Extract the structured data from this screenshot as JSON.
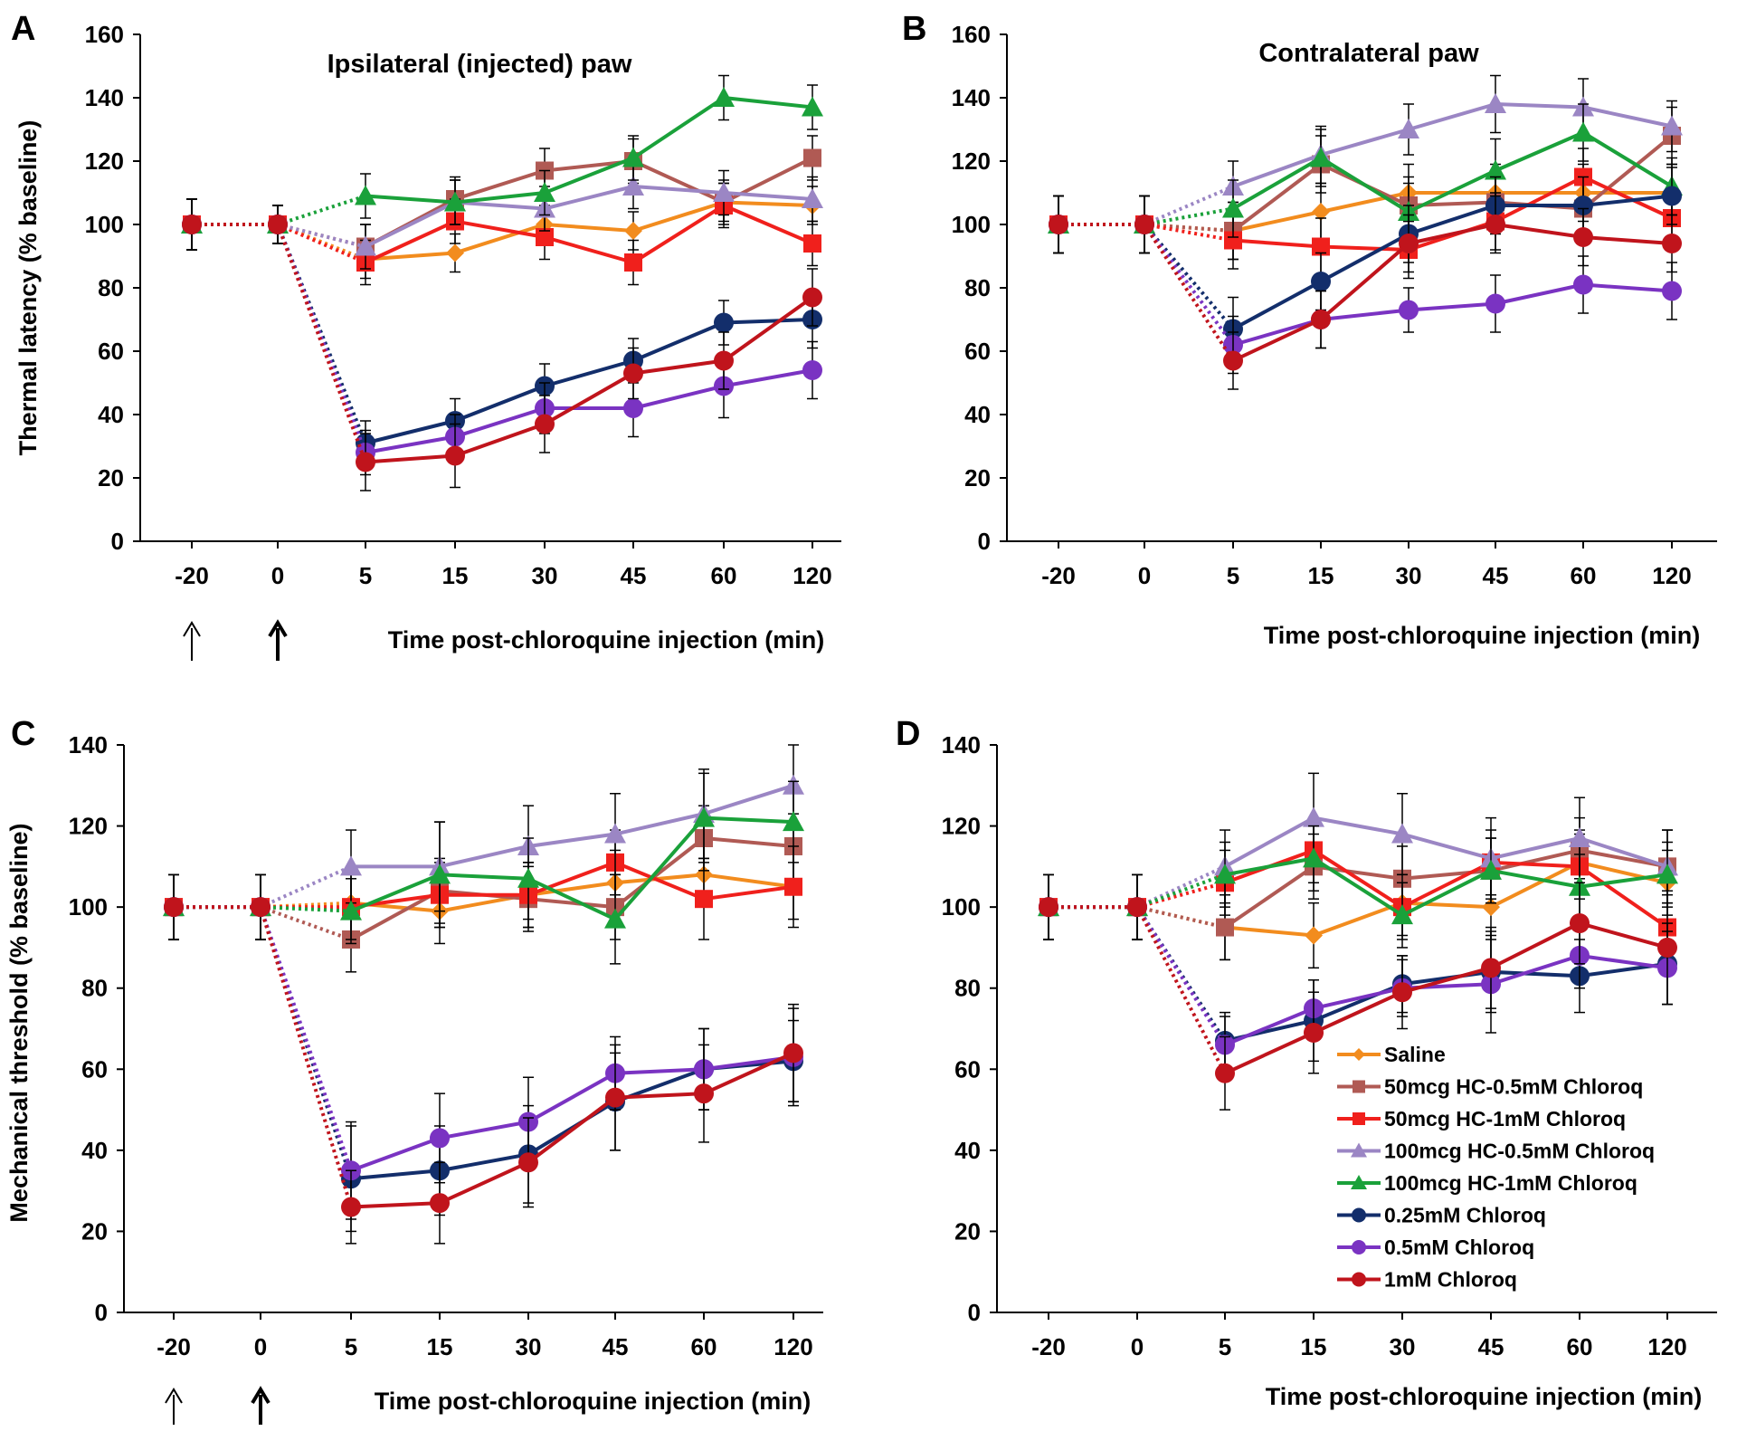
{
  "colors": {
    "Saline": "#f28c1e",
    "50mcg HC-0.5mM Chloroq": "#b05a54",
    "50mcg HC-1mM Chloroq": "#f0201c",
    "100mcg HC-0.5mM Chloroq": "#9b86c4",
    "100mcg HC-1mM Chloroq": "#1aa13a",
    "0.25mM Chloroq": "#132e6b",
    "0.5mM Chloroq": "#7a33c2",
    "1mM Chloroq": "#c0141c"
  },
  "markers": {
    "Saline": "diamond",
    "50mcg HC-0.5mM Chloroq": "square",
    "50mcg HC-1mM Chloroq": "square",
    "100mcg HC-0.5mM Chloroq": "triangle",
    "100mcg HC-1mM Chloroq": "triangle",
    "0.25mM Chloroq": "circle",
    "0.5mM Chloroq": "circle",
    "1mM Chloroq": "circle"
  },
  "legend": {
    "placement": "bottom-right of panel D",
    "entries": [
      "Saline",
      "50mcg HC-0.5mM Chloroq",
      "50mcg HC-1mM Chloroq",
      "100mcg HC-0.5mM Chloroq",
      "100mcg HC-1mM Chloroq",
      "0.25mM Chloroq",
      "0.5mM Chloroq",
      "1mM Chloroq"
    ]
  },
  "chart_data": [
    {
      "panel": "A",
      "type": "line",
      "title": "Ipsilateral (injected) paw",
      "xlabel": "Time post-chloroquine injection (min)",
      "ylabel": "Thermal latency (% baseline)",
      "categories": [
        "-20",
        "0",
        "5",
        "15",
        "30",
        "45",
        "60",
        "120"
      ],
      "ylim": [
        0,
        160
      ],
      "yticks": [
        0,
        20,
        40,
        60,
        80,
        100,
        120,
        140,
        160
      ],
      "arrows": true,
      "series": [
        {
          "name": "Saline",
          "values": [
            100,
            100,
            89,
            91,
            100,
            98,
            107,
            106
          ],
          "errors": [
            8,
            6,
            6,
            6,
            6,
            6,
            6,
            6
          ]
        },
        {
          "name": "50mcg HC-0.5mM Chloroq",
          "values": [
            100,
            100,
            93,
            108,
            117,
            120,
            107,
            121
          ],
          "errors": [
            8,
            6,
            7,
            7,
            7,
            7,
            7,
            7
          ]
        },
        {
          "name": "50mcg HC-1mM Chloroq",
          "values": [
            100,
            100,
            88,
            101,
            96,
            88,
            106,
            94
          ],
          "errors": [
            8,
            6,
            7,
            7,
            7,
            7,
            7,
            7
          ]
        },
        {
          "name": "100mcg HC-0.5mM Chloroq",
          "values": [
            100,
            100,
            93,
            107,
            105,
            112,
            110,
            108
          ],
          "errors": [
            8,
            6,
            7,
            7,
            7,
            7,
            7,
            7
          ]
        },
        {
          "name": "100mcg HC-1mM Chloroq",
          "values": [
            100,
            100,
            109,
            107,
            110,
            121,
            140,
            137
          ],
          "errors": [
            8,
            6,
            7,
            7,
            7,
            7,
            7,
            7
          ]
        },
        {
          "name": "0.25mM Chloroq",
          "values": [
            100,
            100,
            31,
            38,
            49,
            57,
            69,
            70
          ],
          "errors": [
            8,
            6,
            7,
            7,
            7,
            7,
            7,
            9
          ]
        },
        {
          "name": "0.5mM Chloroq",
          "values": [
            100,
            100,
            28,
            33,
            42,
            42,
            49,
            54
          ],
          "errors": [
            8,
            6,
            7,
            7,
            8,
            9,
            10,
            9
          ]
        },
        {
          "name": "1mM Chloroq",
          "values": [
            100,
            100,
            25,
            27,
            37,
            53,
            57,
            77
          ],
          "errors": [
            8,
            6,
            9,
            10,
            9,
            8,
            9,
            9
          ]
        }
      ]
    },
    {
      "panel": "B",
      "type": "line",
      "title": "Contralateral paw",
      "xlabel": "Time post-chloroquine injection (min)",
      "ylabel": "",
      "categories": [
        "-20",
        "0",
        "5",
        "15",
        "30",
        "45",
        "60",
        "120"
      ],
      "ylim": [
        0,
        160
      ],
      "yticks": [
        0,
        20,
        40,
        60,
        80,
        100,
        120,
        140,
        160
      ],
      "arrows": false,
      "series": [
        {
          "name": "Saline",
          "values": [
            100,
            100,
            98,
            104,
            110,
            110,
            110,
            110
          ],
          "errors": [
            9,
            9,
            9,
            9,
            9,
            9,
            9,
            9
          ]
        },
        {
          "name": "50mcg HC-0.5mM Chloroq",
          "values": [
            100,
            100,
            98,
            119,
            106,
            107,
            105,
            128
          ],
          "errors": [
            9,
            9,
            9,
            9,
            9,
            9,
            9,
            9
          ]
        },
        {
          "name": "50mcg HC-1mM Chloroq",
          "values": [
            100,
            100,
            95,
            93,
            92,
            101,
            115,
            102
          ],
          "errors": [
            9,
            9,
            9,
            9,
            9,
            9,
            9,
            9
          ]
        },
        {
          "name": "100mcg HC-0.5mM Chloroq",
          "values": [
            100,
            100,
            112,
            122,
            130,
            138,
            137,
            131
          ],
          "errors": [
            9,
            9,
            8,
            9,
            8,
            9,
            9,
            8
          ]
        },
        {
          "name": "100mcg HC-1mM Chloroq",
          "values": [
            100,
            100,
            105,
            121,
            104,
            117,
            129,
            112
          ],
          "errors": [
            9,
            9,
            9,
            9,
            9,
            10,
            9,
            9
          ]
        },
        {
          "name": "0.25mM Chloroq",
          "values": [
            100,
            100,
            67,
            82,
            97,
            106,
            106,
            109
          ],
          "errors": [
            9,
            9,
            10,
            9,
            9,
            9,
            9,
            9
          ]
        },
        {
          "name": "0.5mM Chloroq",
          "values": [
            100,
            100,
            62,
            70,
            73,
            75,
            81,
            79
          ],
          "errors": [
            9,
            9,
            9,
            9,
            7,
            9,
            9,
            9
          ]
        },
        {
          "name": "1mM Chloroq",
          "values": [
            100,
            100,
            57,
            70,
            94,
            100,
            96,
            94
          ],
          "errors": [
            9,
            9,
            9,
            9,
            9,
            9,
            9,
            9
          ]
        }
      ]
    },
    {
      "panel": "C",
      "type": "line",
      "title": "",
      "xlabel": "Time post-chloroquine injection (min)",
      "ylabel": "Mechanical threshold (% baseline)",
      "categories": [
        "-20",
        "0",
        "5",
        "15",
        "30",
        "45",
        "60",
        "120"
      ],
      "ylim": [
        0,
        140
      ],
      "yticks": [
        0,
        20,
        40,
        60,
        80,
        100,
        120,
        140
      ],
      "arrows": true,
      "series": [
        {
          "name": "Saline",
          "values": [
            100,
            100,
            101,
            99,
            103,
            106,
            108,
            105
          ],
          "errors": [
            8,
            8,
            8,
            8,
            8,
            8,
            8,
            8
          ]
        },
        {
          "name": "50mcg HC-0.5mM Chloroq",
          "values": [
            100,
            100,
            92,
            104,
            102,
            100,
            117,
            115
          ],
          "errors": [
            8,
            8,
            8,
            8,
            8,
            8,
            8,
            8
          ]
        },
        {
          "name": "50mcg HC-1mM Chloroq",
          "values": [
            100,
            100,
            100,
            103,
            103,
            111,
            102,
            105
          ],
          "errors": [
            8,
            8,
            8,
            8,
            8,
            8,
            10,
            10
          ]
        },
        {
          "name": "100mcg HC-0.5mM Chloroq",
          "values": [
            100,
            100,
            110,
            110,
            115,
            118,
            123,
            130
          ],
          "errors": [
            8,
            8,
            9,
            11,
            10,
            10,
            11,
            10
          ]
        },
        {
          "name": "100mcg HC-1mM Chloroq",
          "values": [
            100,
            100,
            99,
            108,
            107,
            97,
            122,
            121
          ],
          "errors": [
            8,
            8,
            8,
            13,
            10,
            11,
            11,
            10
          ]
        },
        {
          "name": "0.25mM Chloroq",
          "values": [
            100,
            100,
            33,
            35,
            39,
            52,
            60,
            62
          ],
          "errors": [
            8,
            8,
            13,
            11,
            12,
            12,
            10,
            10
          ]
        },
        {
          "name": "0.5mM Chloroq",
          "values": [
            100,
            100,
            35,
            43,
            47,
            59,
            60,
            63
          ],
          "errors": [
            8,
            8,
            12,
            11,
            11,
            9,
            10,
            12
          ]
        },
        {
          "name": "1mM Chloroq",
          "values": [
            100,
            100,
            26,
            27,
            37,
            53,
            54,
            64
          ],
          "errors": [
            8,
            8,
            9,
            10,
            11,
            13,
            12,
            12
          ]
        }
      ]
    },
    {
      "panel": "D",
      "type": "line",
      "title": "",
      "xlabel": "Time post-chloroquine injection (min)",
      "ylabel": "",
      "categories": [
        "-20",
        "0",
        "5",
        "15",
        "30",
        "45",
        "60",
        "120"
      ],
      "ylim": [
        0,
        140
      ],
      "yticks": [
        0,
        20,
        40,
        60,
        80,
        100,
        120,
        140
      ],
      "arrows": false,
      "series": [
        {
          "name": "Saline",
          "values": [
            100,
            100,
            95,
            93,
            101,
            100,
            111,
            106
          ],
          "errors": [
            8,
            8,
            8,
            8,
            8,
            8,
            8,
            8
          ]
        },
        {
          "name": "50mcg HC-0.5mM Chloroq",
          "values": [
            100,
            100,
            95,
            110,
            107,
            109,
            114,
            110
          ],
          "errors": [
            8,
            8,
            8,
            8,
            8,
            8,
            8,
            9
          ]
        },
        {
          "name": "50mcg HC-1mM Chloroq",
          "values": [
            100,
            100,
            106,
            114,
            100,
            111,
            110,
            95
          ],
          "errors": [
            8,
            8,
            8,
            8,
            8,
            8,
            8,
            8
          ]
        },
        {
          "name": "100mcg HC-0.5mM Chloroq",
          "values": [
            100,
            100,
            110,
            122,
            118,
            112,
            117,
            110
          ],
          "errors": [
            8,
            8,
            9,
            11,
            10,
            10,
            10,
            9
          ]
        },
        {
          "name": "100mcg HC-1mM Chloroq",
          "values": [
            100,
            100,
            108,
            112,
            98,
            109,
            105,
            108
          ],
          "errors": [
            8,
            8,
            8,
            8,
            8,
            8,
            8,
            8
          ]
        },
        {
          "name": "0.25mM Chloroq",
          "values": [
            100,
            100,
            67,
            72,
            81,
            84,
            83,
            86
          ],
          "errors": [
            8,
            8,
            7,
            10,
            7,
            10,
            9,
            10
          ]
        },
        {
          "name": "0.5mM Chloroq",
          "values": [
            100,
            100,
            66,
            75,
            80,
            81,
            88,
            85
          ],
          "errors": [
            8,
            8,
            7,
            7,
            7,
            12,
            8,
            9
          ]
        },
        {
          "name": "1mM Chloroq",
          "values": [
            100,
            100,
            59,
            69,
            79,
            85,
            96,
            90
          ],
          "errors": [
            8,
            8,
            9,
            10,
            9,
            10,
            10,
            14
          ]
        }
      ]
    }
  ]
}
